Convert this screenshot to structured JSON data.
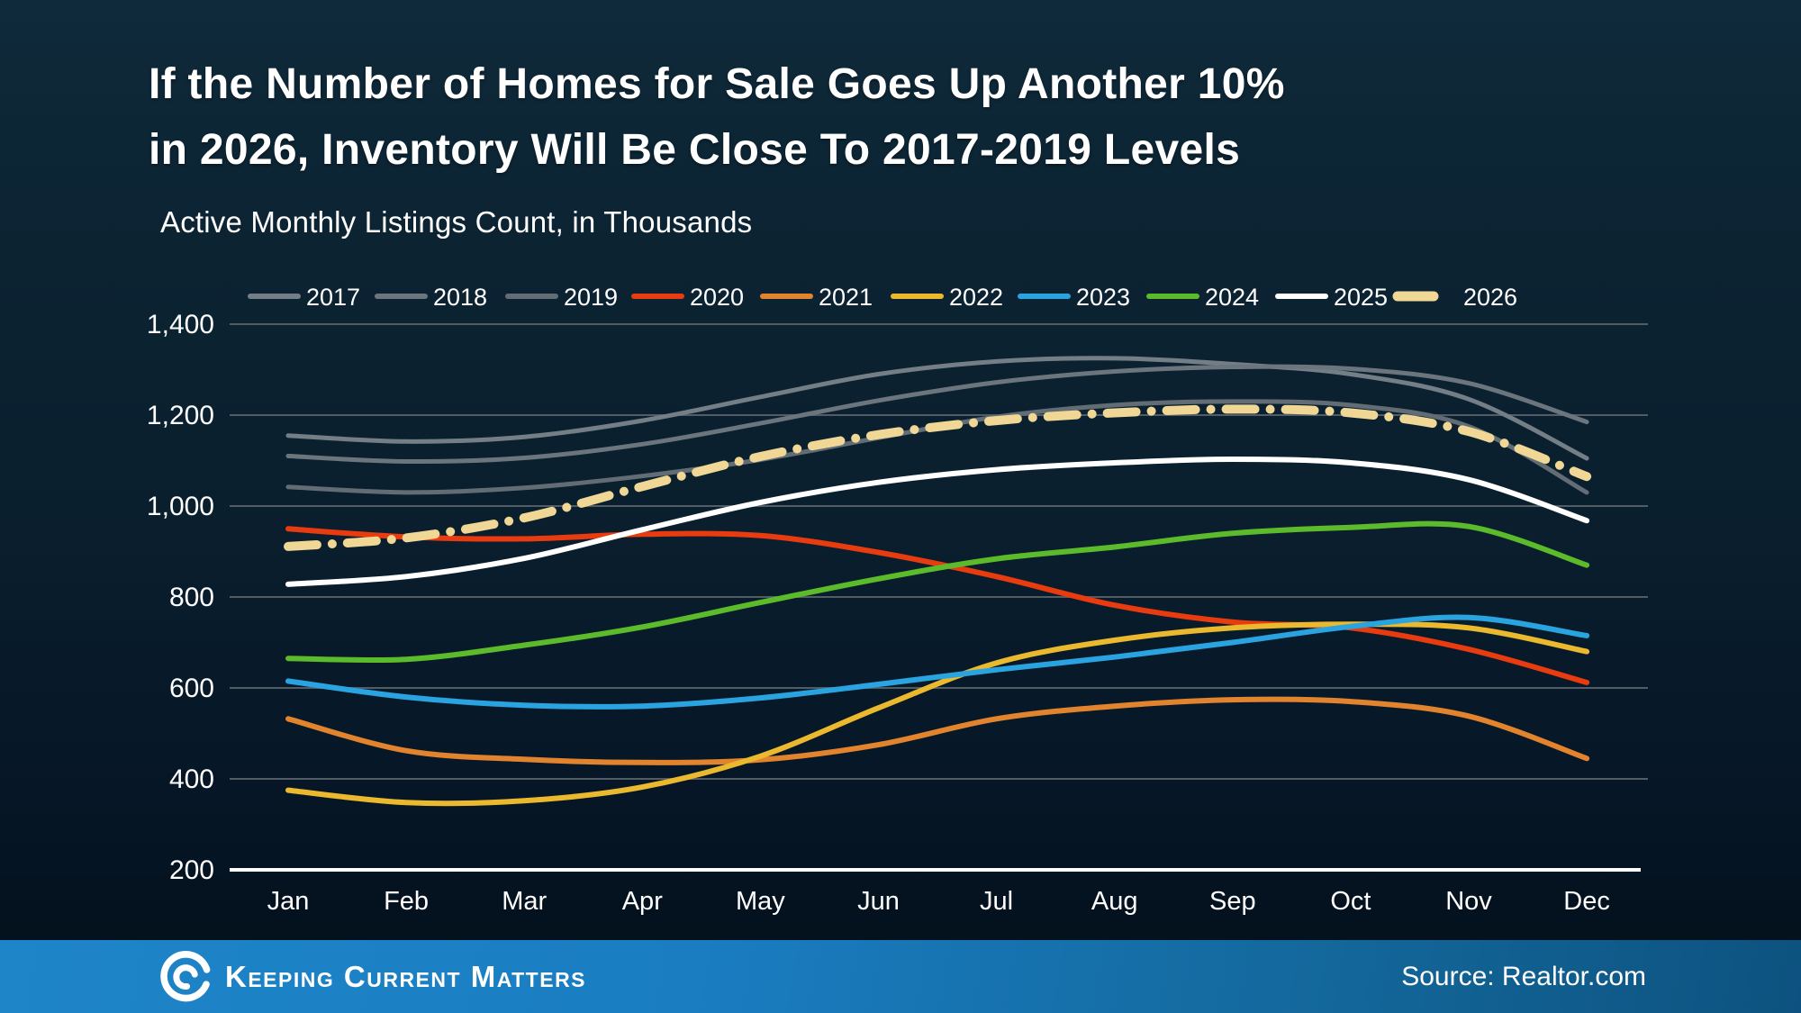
{
  "title": {
    "line1": "If the Number of Homes for Sale Goes Up Another 10%",
    "line2": "in 2026, Inventory Will Be Close To 2017-2019 Levels"
  },
  "subtitle": "Active Monthly Listings Count, in Thousands",
  "footer": {
    "brand": "Keeping Current Matters",
    "source": "Source: Realtor.com",
    "logo_icon": "kcm-swirl-icon"
  },
  "chart_data": {
    "type": "line",
    "title": "If the Number of Homes for Sale Goes Up Another 10% in 2026, Inventory Will Be Close To 2017-2019 Levels",
    "subtitle": "Active Monthly Listings Count, in Thousands",
    "xlabel": "",
    "ylabel": "Active Monthly Listings Count, in Thousands",
    "x": [
      "Jan",
      "Feb",
      "Mar",
      "Apr",
      "May",
      "Jun",
      "Jul",
      "Aug",
      "Sep",
      "Oct",
      "Nov",
      "Dec"
    ],
    "ylim": [
      200,
      1400
    ],
    "y_ticks": [
      1400,
      1200,
      1000,
      800,
      600,
      400,
      200
    ],
    "y_tick_labels": [
      "1,400",
      "1,200",
      "1,000",
      "800",
      "600",
      "400",
      "200"
    ],
    "grid": true,
    "legend_position": "top",
    "axis_color": "#ffffff",
    "gridline_color": "#525c64",
    "series": [
      {
        "name": "2017",
        "color": "#747e86",
        "width": 5,
        "dash": "solid",
        "values": [
          1155,
          1142,
          1152,
          1188,
          1240,
          1290,
          1318,
          1325,
          1312,
          1290,
          1235,
          1105
        ]
      },
      {
        "name": "2018",
        "color": "#6b757d",
        "width": 5,
        "dash": "solid",
        "values": [
          1110,
          1098,
          1106,
          1136,
          1182,
          1232,
          1272,
          1296,
          1306,
          1302,
          1270,
          1185
        ]
      },
      {
        "name": "2019",
        "color": "#626c74",
        "width": 5,
        "dash": "solid",
        "values": [
          1042,
          1030,
          1040,
          1066,
          1102,
          1150,
          1196,
          1222,
          1230,
          1222,
          1175,
          1030
        ]
      },
      {
        "name": "2020",
        "color": "#e83b0f",
        "width": 6,
        "dash": "solid",
        "values": [
          950,
          932,
          928,
          938,
          935,
          898,
          845,
          782,
          745,
          732,
          685,
          612
        ]
      },
      {
        "name": "2021",
        "color": "#e2832e",
        "width": 6,
        "dash": "solid",
        "values": [
          532,
          462,
          443,
          436,
          442,
          475,
          532,
          560,
          574,
          570,
          538,
          445
        ]
      },
      {
        "name": "2022",
        "color": "#eab92e",
        "width": 6,
        "dash": "solid",
        "values": [
          375,
          348,
          352,
          382,
          450,
          556,
          655,
          705,
          732,
          740,
          732,
          680
        ]
      },
      {
        "name": "2023",
        "color": "#29a4e0",
        "width": 6,
        "dash": "solid",
        "values": [
          615,
          580,
          562,
          560,
          578,
          608,
          640,
          668,
          700,
          735,
          755,
          715
        ]
      },
      {
        "name": "2024",
        "color": "#5cbb2b",
        "width": 6,
        "dash": "solid",
        "values": [
          665,
          663,
          694,
          734,
          788,
          840,
          884,
          910,
          940,
          953,
          955,
          870
        ]
      },
      {
        "name": "2025",
        "color": "#ffffff",
        "width": 6,
        "dash": "solid",
        "values": [
          828,
          845,
          885,
          948,
          1008,
          1052,
          1080,
          1095,
          1103,
          1095,
          1058,
          968
        ]
      },
      {
        "name": "2026",
        "color": "#f0d795",
        "width": 10,
        "dash": "dash-dot",
        "values": [
          911,
          930,
          974,
          1043,
          1109,
          1157,
          1188,
          1205,
          1213,
          1205,
          1164,
          1065
        ]
      }
    ]
  }
}
